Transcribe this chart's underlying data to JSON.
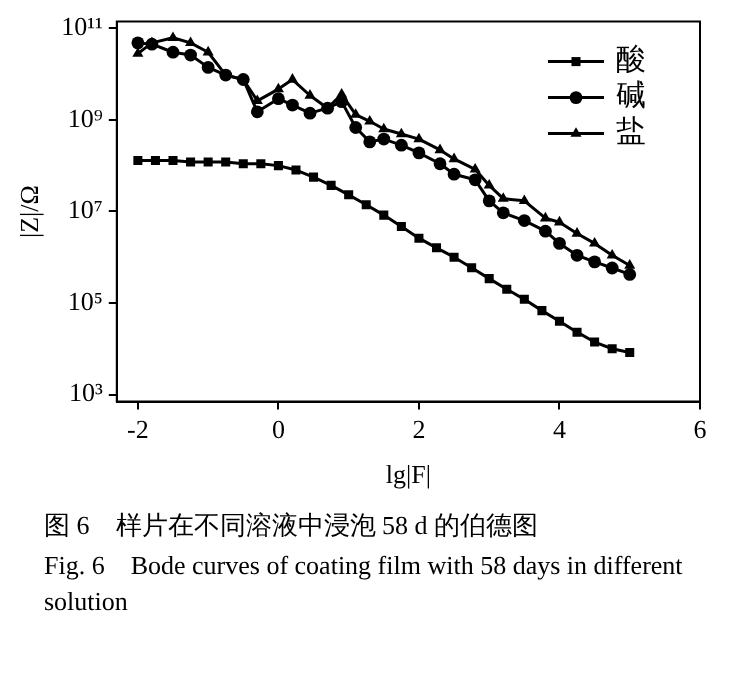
{
  "chart_data": {
    "type": "line",
    "xlabel": "lg|F|",
    "ylabel": "|Z|/Ω",
    "log": "y",
    "legend": "top right",
    "grid": false,
    "xlim": [
      -2.3,
      6
    ],
    "xticks": [
      -2,
      0,
      2,
      4,
      6
    ],
    "ylim": [
      700,
      140000000000
    ],
    "yticks": [
      {
        "value": 1000,
        "label": "10³"
      },
      {
        "value": 100000,
        "label": "10⁵"
      },
      {
        "value": 10000000,
        "label": "10⁷"
      },
      {
        "value": 1000000000,
        "label": "10⁹"
      },
      {
        "value": 100000000000,
        "label": "10¹¹"
      }
    ],
    "series": [
      {
        "name": "酸",
        "color": "#000000",
        "marker": "square",
        "x": [
          -2,
          -1.75,
          -1.5,
          -1.25,
          -1,
          -0.75,
          -0.5,
          -0.25,
          0,
          0.25,
          0.5,
          0.75,
          1,
          1.25,
          1.5,
          1.75,
          2,
          2.25,
          2.5,
          2.75,
          3,
          3.25,
          3.5,
          3.75,
          4,
          4.25,
          4.5,
          4.75,
          5
        ],
        "values": [
          130000000.0,
          130000000.0,
          130000000.0,
          120000000.0,
          120000000.0,
          120000000.0,
          110000000.0,
          110000000.0,
          100000000.0,
          80000000.0,
          56000000.0,
          37000000.0,
          23000000.0,
          14000000.0,
          8300000.0,
          4700000.0,
          2600000.0,
          1600000.0,
          1000000.0,
          590000.0,
          340000.0,
          200000.0,
          120000.0,
          68000.0,
          40000.0,
          23000.0,
          14000.0,
          10000.0,
          8300.0
        ]
      },
      {
        "name": "碱",
        "color": "#000000",
        "marker": "circle",
        "x": [
          -2,
          -1.8,
          -1.5,
          -1.25,
          -1,
          -0.75,
          -0.5,
          -0.3,
          0,
          0.2,
          0.45,
          0.7,
          0.9,
          1.1,
          1.3,
          1.5,
          1.75,
          2,
          2.3,
          2.5,
          2.8,
          3,
          3.2,
          3.5,
          3.8,
          4,
          4.25,
          4.5,
          4.75,
          5
        ],
        "values": [
          48000000000.0,
          45000000000.0,
          30000000000.0,
          26000000000.0,
          14000000000.0,
          9500000000.0,
          7600000000.0,
          1500000000.0,
          2900000000.0,
          2100000000.0,
          1400000000.0,
          1800000000.0,
          2500000000.0,
          680000000.0,
          330000000.0,
          380000000.0,
          280000000.0,
          190000000.0,
          110000000.0,
          65000000.0,
          49000000.0,
          17000000.0,
          9300000.0,
          6300000.0,
          3700000.0,
          2000000.0,
          1100000.0,
          790000.0,
          580000.0,
          420000.0
        ]
      },
      {
        "name": "盐",
        "color": "#000000",
        "marker": "triangle",
        "x": [
          -2,
          -1.8,
          -1.5,
          -1.25,
          -1,
          -0.75,
          -0.5,
          -0.3,
          0,
          0.2,
          0.45,
          0.7,
          0.9,
          1.1,
          1.3,
          1.5,
          1.75,
          2,
          2.3,
          2.5,
          2.8,
          3,
          3.2,
          3.5,
          3.8,
          4,
          4.25,
          4.5,
          4.75,
          5
        ],
        "values": [
          28000000000.0,
          48000000000.0,
          62000000000.0,
          48000000000.0,
          30000000000.0,
          9500000000.0,
          7600000000.0,
          2600000000.0,
          4700000000.0,
          7600000000.0,
          3400000000.0,
          1800000000.0,
          3600000000.0,
          1300000000.0,
          930000000.0,
          630000000.0,
          490000000.0,
          380000000.0,
          220000000.0,
          140000000.0,
          83000000.0,
          37000000.0,
          19000000.0,
          17000000.0,
          7100000.0,
          5800000.0,
          3300000.0,
          2000000.0,
          1100000.0,
          660000.0
        ]
      }
    ],
    "annotations": [
      "图 6　样片在不同溶液中浸泡 58 d 的伯德图",
      "Fig. 6　Bode curves of coating film with 58 days in different solution"
    ]
  }
}
